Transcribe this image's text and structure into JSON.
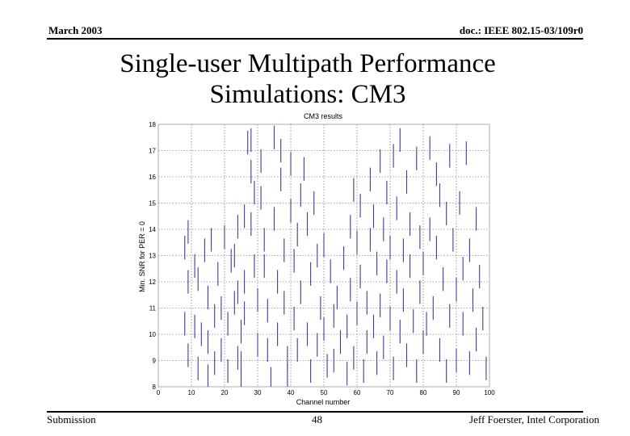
{
  "header": {
    "left": "March 2003",
    "right": "doc.: IEEE 802.15-03/109r0"
  },
  "slide": {
    "title_line1": "Single-user Multipath Performance",
    "title_line2": "Simulations: CM3"
  },
  "footer": {
    "left": "Submission",
    "page": "48",
    "right": "Jeff Foerster, Intel Corporation"
  },
  "colors": {
    "bars": "#3b3f9a",
    "grid": "#555555"
  },
  "chart_data": {
    "type": "scatter",
    "title": "CM3 results",
    "xlabel": "Channel number",
    "ylabel": "Min. SNR for PER = 0",
    "xlim": [
      0,
      100
    ],
    "ylim": [
      8,
      18
    ],
    "xticks": [
      0,
      10,
      20,
      30,
      40,
      50,
      60,
      70,
      80,
      90,
      100
    ],
    "yticks": [
      8,
      9,
      10,
      11,
      12,
      13,
      14,
      15,
      16,
      17,
      18
    ],
    "grid": true,
    "series": [
      {
        "marker": "vertical-bar",
        "points": [
          {
            "x": 8,
            "y": 13.3
          },
          {
            "x": 9,
            "y": 13.9
          },
          {
            "x": 9,
            "y": 12.0
          },
          {
            "x": 8,
            "y": 10.4
          },
          {
            "x": 9,
            "y": 9.2
          },
          {
            "x": 11,
            "y": 12.6
          },
          {
            "x": 11,
            "y": 10.3
          },
          {
            "x": 12,
            "y": 12.1
          },
          {
            "x": 12,
            "y": 8.7
          },
          {
            "x": 13,
            "y": 10.0
          },
          {
            "x": 14,
            "y": 13.2
          },
          {
            "x": 15,
            "y": 11.4
          },
          {
            "x": 15,
            "y": 9.7
          },
          {
            "x": 15,
            "y": 8.4
          },
          {
            "x": 16,
            "y": 13.6
          },
          {
            "x": 17,
            "y": 10.7
          },
          {
            "x": 17,
            "y": 8.9
          },
          {
            "x": 18,
            "y": 12.3
          },
          {
            "x": 19,
            "y": 11.0
          },
          {
            "x": 19,
            "y": 9.4
          },
          {
            "x": 20,
            "y": 13.7
          },
          {
            "x": 21,
            "y": 10.4
          },
          {
            "x": 21,
            "y": 8.6
          },
          {
            "x": 22,
            "y": 12.8
          },
          {
            "x": 23,
            "y": 11.2
          },
          {
            "x": 24,
            "y": 9.1
          },
          {
            "x": 24,
            "y": 14.1
          },
          {
            "x": 25,
            "y": 10.1
          },
          {
            "x": 25,
            "y": 8.4
          },
          {
            "x": 26,
            "y": 12.0
          },
          {
            "x": 27,
            "y": 17.3
          },
          {
            "x": 23,
            "y": 13.0
          },
          {
            "x": 24,
            "y": 11.6
          },
          {
            "x": 25,
            "y": 8.9
          },
          {
            "x": 26,
            "y": 14.5
          },
          {
            "x": 26,
            "y": 10.8
          },
          {
            "x": 28,
            "y": 17.4
          },
          {
            "x": 28,
            "y": 16.2
          },
          {
            "x": 28,
            "y": 14.2
          },
          {
            "x": 29,
            "y": 12.6
          },
          {
            "x": 29,
            "y": 15.4
          },
          {
            "x": 30,
            "y": 11.3
          },
          {
            "x": 30,
            "y": 9.6
          },
          {
            "x": 31,
            "y": 16.6
          },
          {
            "x": 31,
            "y": 15.2
          },
          {
            "x": 32,
            "y": 13.6
          },
          {
            "x": 32,
            "y": 12.6
          },
          {
            "x": 33,
            "y": 10.9
          },
          {
            "x": 33,
            "y": 9.4
          },
          {
            "x": 34,
            "y": 8.3
          },
          {
            "x": 35,
            "y": 17.5
          },
          {
            "x": 35,
            "y": 14.4
          },
          {
            "x": 36,
            "y": 12.0
          },
          {
            "x": 36,
            "y": 10.0
          },
          {
            "x": 37,
            "y": 17.0
          },
          {
            "x": 37,
            "y": 15.9
          },
          {
            "x": 38,
            "y": 13.2
          },
          {
            "x": 38,
            "y": 11.2
          },
          {
            "x": 39,
            "y": 9.1
          },
          {
            "x": 39,
            "y": 8.4
          },
          {
            "x": 40,
            "y": 16.5
          },
          {
            "x": 40,
            "y": 14.7
          },
          {
            "x": 41,
            "y": 12.8
          },
          {
            "x": 41,
            "y": 10.6
          },
          {
            "x": 42,
            "y": 13.8
          },
          {
            "x": 42,
            "y": 9.4
          },
          {
            "x": 43,
            "y": 15.3
          },
          {
            "x": 43,
            "y": 11.6
          },
          {
            "x": 44,
            "y": 16.3
          },
          {
            "x": 45,
            "y": 14.2
          },
          {
            "x": 45,
            "y": 10.0
          },
          {
            "x": 46,
            "y": 12.3
          },
          {
            "x": 46,
            "y": 8.6
          },
          {
            "x": 47,
            "y": 15.0
          },
          {
            "x": 48,
            "y": 13.0
          },
          {
            "x": 48,
            "y": 9.6
          },
          {
            "x": 49,
            "y": 11.0
          },
          {
            "x": 50,
            "y": 13.4
          },
          {
            "x": 50,
            "y": 10.2
          },
          {
            "x": 51,
            "y": 8.8
          },
          {
            "x": 52,
            "y": 12.4
          },
          {
            "x": 53,
            "y": 10.7
          },
          {
            "x": 53,
            "y": 9.0
          },
          {
            "x": 54,
            "y": 11.4
          },
          {
            "x": 55,
            "y": 9.7
          },
          {
            "x": 56,
            "y": 12.9
          },
          {
            "x": 57,
            "y": 10.3
          },
          {
            "x": 57,
            "y": 8.5
          },
          {
            "x": 58,
            "y": 14.1
          },
          {
            "x": 58,
            "y": 11.7
          },
          {
            "x": 59,
            "y": 15.5
          },
          {
            "x": 59,
            "y": 9.1
          },
          {
            "x": 60,
            "y": 13.5
          },
          {
            "x": 60,
            "y": 10.8
          },
          {
            "x": 61,
            "y": 14.9
          },
          {
            "x": 61,
            "y": 12.2
          },
          {
            "x": 62,
            "y": 8.6
          },
          {
            "x": 63,
            "y": 11.2
          },
          {
            "x": 63,
            "y": 9.7
          },
          {
            "x": 64,
            "y": 15.9
          },
          {
            "x": 64,
            "y": 13.6
          },
          {
            "x": 65,
            "y": 14.5
          },
          {
            "x": 65,
            "y": 10.3
          },
          {
            "x": 66,
            "y": 12.7
          },
          {
            "x": 66,
            "y": 8.9
          },
          {
            "x": 67,
            "y": 16.6
          },
          {
            "x": 67,
            "y": 11.1
          },
          {
            "x": 68,
            "y": 14.0
          },
          {
            "x": 68,
            "y": 9.5
          },
          {
            "x": 69,
            "y": 15.4
          },
          {
            "x": 69,
            "y": 12.4
          },
          {
            "x": 70,
            "y": 13.3
          },
          {
            "x": 70,
            "y": 10.6
          },
          {
            "x": 71,
            "y": 16.8
          },
          {
            "x": 71,
            "y": 8.7
          },
          {
            "x": 72,
            "y": 12.0
          },
          {
            "x": 72,
            "y": 14.8
          },
          {
            "x": 73,
            "y": 10.1
          },
          {
            "x": 73,
            "y": 17.4
          },
          {
            "x": 74,
            "y": 13.2
          },
          {
            "x": 74,
            "y": 11.3
          },
          {
            "x": 75,
            "y": 9.2
          },
          {
            "x": 75,
            "y": 15.8
          },
          {
            "x": 76,
            "y": 12.6
          },
          {
            "x": 76,
            "y": 14.2
          },
          {
            "x": 77,
            "y": 10.5
          },
          {
            "x": 78,
            "y": 16.7
          },
          {
            "x": 78,
            "y": 8.6
          },
          {
            "x": 79,
            "y": 13.7
          },
          {
            "x": 79,
            "y": 11.6
          },
          {
            "x": 80,
            "y": 12.7
          },
          {
            "x": 80,
            "y": 9.7
          },
          {
            "x": 81,
            "y": 10.4
          },
          {
            "x": 82,
            "y": 17.1
          },
          {
            "x": 82,
            "y": 14.0
          },
          {
            "x": 83,
            "y": 11.0
          },
          {
            "x": 84,
            "y": 16.1
          },
          {
            "x": 84,
            "y": 13.3
          },
          {
            "x": 85,
            "y": 15.3
          },
          {
            "x": 85,
            "y": 9.4
          },
          {
            "x": 86,
            "y": 12.1
          },
          {
            "x": 87,
            "y": 14.6
          },
          {
            "x": 87,
            "y": 8.6
          },
          {
            "x": 88,
            "y": 16.8
          },
          {
            "x": 88,
            "y": 10.7
          },
          {
            "x": 89,
            "y": 13.6
          },
          {
            "x": 90,
            "y": 11.7
          },
          {
            "x": 90,
            "y": 9.0
          },
          {
            "x": 91,
            "y": 15.0
          },
          {
            "x": 92,
            "y": 12.5
          },
          {
            "x": 92,
            "y": 10.4
          },
          {
            "x": 93,
            "y": 16.9
          },
          {
            "x": 94,
            "y": 13.2
          },
          {
            "x": 94,
            "y": 8.9
          },
          {
            "x": 95,
            "y": 11.3
          },
          {
            "x": 96,
            "y": 14.4
          },
          {
            "x": 96,
            "y": 9.8
          },
          {
            "x": 97,
            "y": 12.2
          },
          {
            "x": 98,
            "y": 10.6
          },
          {
            "x": 99,
            "y": 8.7
          }
        ]
      }
    ]
  }
}
